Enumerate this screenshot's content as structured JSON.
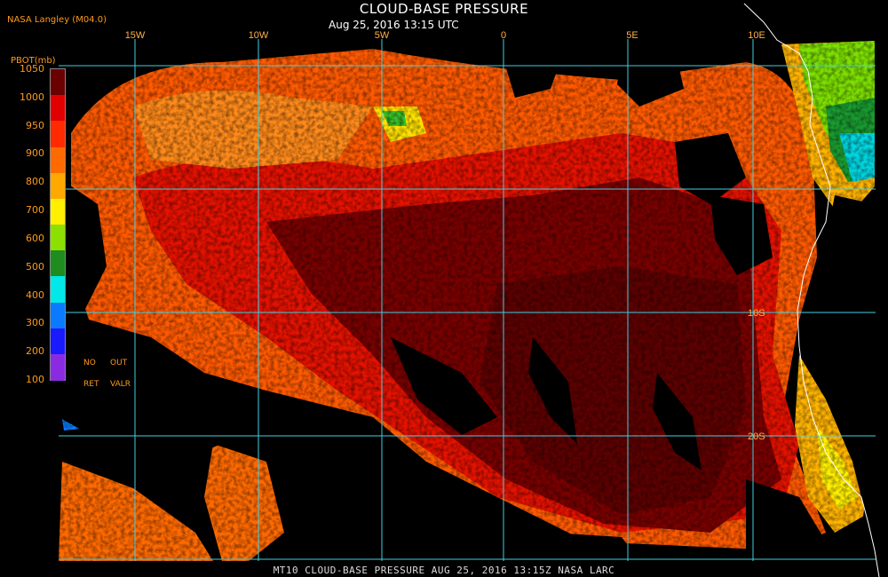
{
  "title": "CLOUD-BASE PRESSURE",
  "subtitle": "Aug 25, 2016 13:15 UTC",
  "source": "NASA Langley (M04.0)",
  "footer": "MT10   CLOUD-BASE PRESSURE   AUG 25, 2016 13:15Z   NASA LARC",
  "legend": {
    "title": "PBOT(mb)",
    "ticks": [
      "1050",
      "1000",
      "950",
      "900",
      "800",
      "700",
      "600",
      "500",
      "400",
      "300",
      "200",
      "100"
    ],
    "colors": [
      "#6b0000",
      "#e00000",
      "#ff2a00",
      "#ff6a00",
      "#ffa800",
      "#ffef00",
      "#8be000",
      "#1e8c1e",
      "#00e8e8",
      "#0a7aff",
      "#1a1aff",
      "#8a2be2"
    ],
    "nodata_labels": [
      "NO",
      "OUT",
      "RET",
      "VALR"
    ]
  },
  "map": {
    "lon_labels": [
      "15W",
      "10W",
      "5W",
      "0",
      "5E",
      "10E"
    ],
    "lat_labels": [
      "10S",
      "20S"
    ],
    "gridline_color": "#3fd0e0",
    "coast_color": "#ffffff"
  }
}
